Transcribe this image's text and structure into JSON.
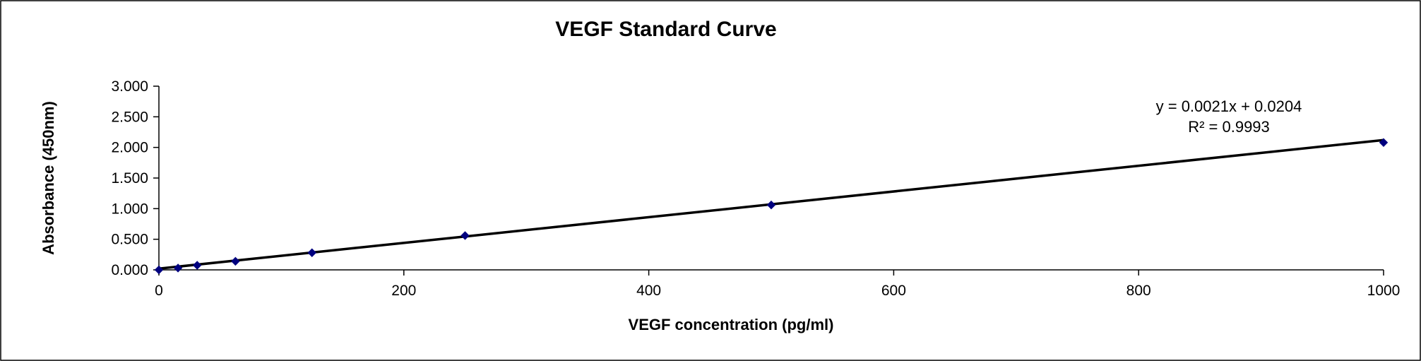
{
  "chart_data": {
    "type": "scatter",
    "title": "VEGF Standard Curve",
    "xlabel": "VEGF concentration (pg/ml)",
    "ylabel": "Absorbance (450nm)",
    "xlim": [
      0,
      1000
    ],
    "ylim": [
      0,
      3
    ],
    "x_ticks": [
      "0",
      "200",
      "400",
      "600",
      "800",
      "1000"
    ],
    "y_ticks": [
      "0.000",
      "0.500",
      "1.000",
      "1.500",
      "2.000",
      "2.500",
      "3.000"
    ],
    "grid": false,
    "legend": "none",
    "marker_color": "#00007f",
    "series": [
      {
        "x": [
          0,
          15.6,
          31.25,
          62.5,
          125,
          250,
          500,
          1000
        ],
        "y": [
          0.0,
          0.03,
          0.075,
          0.14,
          0.28,
          0.56,
          1.06,
          2.08
        ]
      }
    ],
    "trendline": {
      "type": "linear",
      "slope": 0.0021,
      "intercept": 0.0204,
      "equation_text": "y = 0.0021x + 0.0204",
      "r2_text": "R² = 0.9993",
      "color": "#000000"
    }
  }
}
